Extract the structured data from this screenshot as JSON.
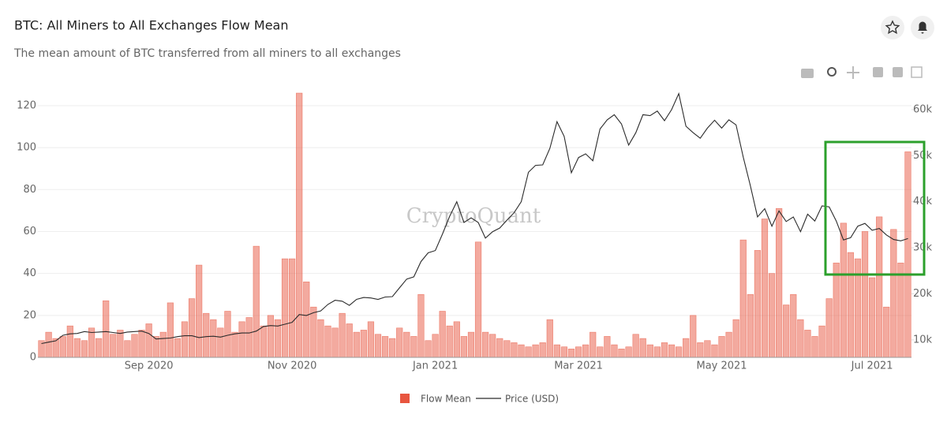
{
  "chart_data": {
    "type": "bar-line",
    "title": "BTC: All Miners to All Exchanges Flow Mean",
    "subtitle": "The mean amount of BTC transferred from all miners to all exchanges",
    "watermark": "CryptoQuant",
    "categories": [
      null,
      null,
      null,
      null,
      null,
      null,
      null,
      null,
      null,
      null,
      null,
      null,
      null,
      null,
      null,
      "Sep 2020",
      null,
      null,
      null,
      null,
      null,
      null,
      null,
      null,
      null,
      null,
      null,
      null,
      null,
      null,
      null,
      null,
      null,
      null,
      null,
      "Nov 2020",
      null,
      null,
      null,
      null,
      null,
      null,
      null,
      null,
      null,
      null,
      null,
      null,
      null,
      null,
      null,
      null,
      null,
      null,
      null,
      "Jan 2021",
      null,
      null,
      null,
      null,
      null,
      null,
      null,
      null,
      null,
      null,
      null,
      null,
      null,
      null,
      null,
      null,
      null,
      null,
      null,
      "Mar 2021",
      null,
      null,
      null,
      null,
      null,
      null,
      null,
      null,
      null,
      null,
      null,
      null,
      null,
      null,
      null,
      null,
      null,
      null,
      null,
      "May 2021",
      null,
      null,
      null,
      null,
      null,
      null,
      null,
      null,
      null,
      null,
      null,
      null,
      null,
      null,
      null,
      null,
      null,
      null,
      null,
      null,
      "Jul 2021",
      null,
      null,
      null,
      null,
      null
    ],
    "series": [
      {
        "name": "Flow Mean",
        "color": "#e8553f",
        "axis": "y",
        "values": [
          8,
          12,
          9,
          10,
          15,
          9,
          8,
          14,
          9,
          27,
          11,
          13,
          8,
          11,
          13,
          16,
          10,
          12,
          26,
          9,
          17,
          28,
          44,
          21,
          18,
          14,
          22,
          12,
          17,
          19,
          53,
          15,
          20,
          18,
          47,
          47,
          126,
          36,
          24,
          18,
          15,
          14,
          21,
          16,
          12,
          13,
          17,
          11,
          10,
          9,
          14,
          12,
          10,
          30,
          8,
          11,
          22,
          15,
          17,
          10,
          12,
          55,
          12,
          11,
          9,
          8,
          7,
          6,
          5,
          6,
          7,
          18,
          6,
          5,
          4,
          5,
          6,
          12,
          5,
          10,
          6,
          4,
          5,
          11,
          9,
          6,
          5,
          7,
          6,
          5,
          9,
          20,
          7,
          8,
          6,
          10,
          12,
          18,
          56,
          30,
          51,
          66,
          40,
          71,
          25,
          30,
          18,
          13,
          10,
          15,
          28,
          45,
          64,
          50,
          47,
          60,
          38,
          67,
          24,
          61,
          45,
          98
        ]
      },
      {
        "name": "Price (USD)",
        "color": "#2b2b2b",
        "axis": "y2",
        "values": [
          9200,
          9500,
          9800,
          11000,
          11300,
          11400,
          11800,
          11600,
          11700,
          11800,
          11600,
          11400,
          11700,
          11800,
          11900,
          11400,
          10200,
          10300,
          10400,
          10700,
          10900,
          10900,
          10500,
          10700,
          10800,
          10600,
          11000,
          11300,
          11500,
          11500,
          11900,
          12900,
          13100,
          13000,
          13400,
          13800,
          15500,
          15300,
          15900,
          16300,
          17700,
          18600,
          18400,
          17500,
          18800,
          19200,
          19100,
          18800,
          19300,
          19400,
          21300,
          23200,
          23700,
          27000,
          28900,
          29400,
          33000,
          36800,
          40000,
          35500,
          36500,
          35500,
          32100,
          33500,
          34300,
          36000,
          37600,
          40000,
          46400,
          47900,
          48000,
          51600,
          57400,
          54200,
          46300,
          49600,
          50400,
          48900,
          55800,
          57800,
          58900,
          56900,
          52300,
          55000,
          58900,
          58700,
          59700,
          57600,
          60000,
          63500,
          56400,
          55000,
          53800,
          56000,
          57700,
          56000,
          57800,
          56700,
          49700,
          43500,
          36700,
          38500,
          34700,
          38000,
          35700,
          36700,
          33500,
          37300,
          35800,
          39100,
          38900,
          35800,
          31700,
          32200,
          34700,
          35300,
          33800,
          34200,
          32800,
          31800,
          31500,
          32000
        ]
      }
    ],
    "ylim": [
      0,
      126
    ],
    "yticks": [
      0,
      20,
      40,
      60,
      80,
      100,
      120
    ],
    "y2lim": [
      6200,
      63600
    ],
    "y2ticks": [
      {
        "value": 10000,
        "label": "10k"
      },
      {
        "value": 20000,
        "label": "20k"
      },
      {
        "value": 30000,
        "label": "30k"
      },
      {
        "value": 40000,
        "label": "40k"
      },
      {
        "value": 50000,
        "label": "50k"
      },
      {
        "value": 60000,
        "label": "60k"
      }
    ],
    "grid": true
  }
}
